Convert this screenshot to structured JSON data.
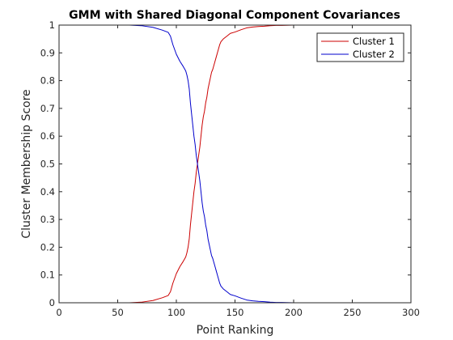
{
  "chart_data": {
    "type": "line",
    "title": "GMM with Shared Diagonal Component Covariances",
    "xlabel": "Point Ranking",
    "ylabel": "Cluster Membership Score",
    "xlim": [
      0,
      300
    ],
    "ylim": [
      0,
      1
    ],
    "grid": false,
    "legend_position": "top-right",
    "x_ticks": [
      0,
      50,
      100,
      150,
      200,
      250,
      300
    ],
    "x_tick_labels": [
      "0",
      "50",
      "100",
      "150",
      "200",
      "250",
      "300"
    ],
    "y_ticks": [
      0,
      0.1,
      0.2,
      0.3,
      0.4,
      0.5,
      0.6,
      0.7,
      0.8,
      0.9,
      1
    ],
    "y_tick_labels": [
      "0",
      "0.1",
      "0.2",
      "0.3",
      "0.4",
      "0.5",
      "0.6",
      "0.7",
      "0.8",
      "0.9",
      "1"
    ],
    "series": [
      {
        "name": "Cluster 1",
        "color": "#cc0000",
        "x": [
          0,
          60,
          70,
          80,
          88,
          93,
          95,
          97,
          100,
          103,
          106,
          108,
          109,
          110,
          111,
          112,
          113,
          114,
          115,
          116,
          117,
          118,
          119,
          120,
          121,
          122,
          123,
          124,
          125,
          126,
          127,
          128,
          129,
          130,
          131,
          132,
          133,
          134,
          135,
          136,
          137,
          138,
          140,
          143,
          146,
          150,
          155,
          160,
          165,
          170,
          175,
          180,
          185,
          190,
          200,
          300
        ],
        "values": [
          0,
          0,
          0.002,
          0.008,
          0.018,
          0.026,
          0.04,
          0.07,
          0.105,
          0.13,
          0.15,
          0.165,
          0.18,
          0.2,
          0.23,
          0.28,
          0.32,
          0.36,
          0.4,
          0.43,
          0.47,
          0.5,
          0.53,
          0.56,
          0.6,
          0.64,
          0.67,
          0.69,
          0.72,
          0.74,
          0.77,
          0.79,
          0.81,
          0.83,
          0.84,
          0.855,
          0.87,
          0.885,
          0.9,
          0.915,
          0.93,
          0.94,
          0.95,
          0.96,
          0.97,
          0.975,
          0.983,
          0.99,
          0.993,
          0.995,
          0.996,
          0.998,
          0.999,
          0.999,
          1,
          1
        ]
      },
      {
        "name": "Cluster 2",
        "color": "#0000cc",
        "x": [
          0,
          60,
          70,
          80,
          88,
          93,
          95,
          97,
          100,
          103,
          106,
          108,
          109,
          110,
          111,
          112,
          113,
          114,
          115,
          116,
          117,
          118,
          119,
          120,
          121,
          122,
          123,
          124,
          125,
          126,
          127,
          128,
          129,
          130,
          131,
          132,
          133,
          134,
          135,
          136,
          137,
          138,
          140,
          143,
          146,
          150,
          155,
          160,
          165,
          170,
          175,
          180,
          185,
          190,
          200,
          300
        ],
        "values": [
          1,
          1,
          0.998,
          0.992,
          0.982,
          0.974,
          0.96,
          0.93,
          0.895,
          0.87,
          0.85,
          0.835,
          0.82,
          0.8,
          0.77,
          0.72,
          0.68,
          0.64,
          0.6,
          0.57,
          0.53,
          0.5,
          0.47,
          0.44,
          0.4,
          0.36,
          0.33,
          0.31,
          0.28,
          0.26,
          0.23,
          0.21,
          0.19,
          0.17,
          0.16,
          0.145,
          0.13,
          0.115,
          0.1,
          0.085,
          0.07,
          0.06,
          0.05,
          0.04,
          0.03,
          0.025,
          0.017,
          0.01,
          0.007,
          0.005,
          0.004,
          0.002,
          0.001,
          0.001,
          0,
          0
        ]
      }
    ]
  }
}
